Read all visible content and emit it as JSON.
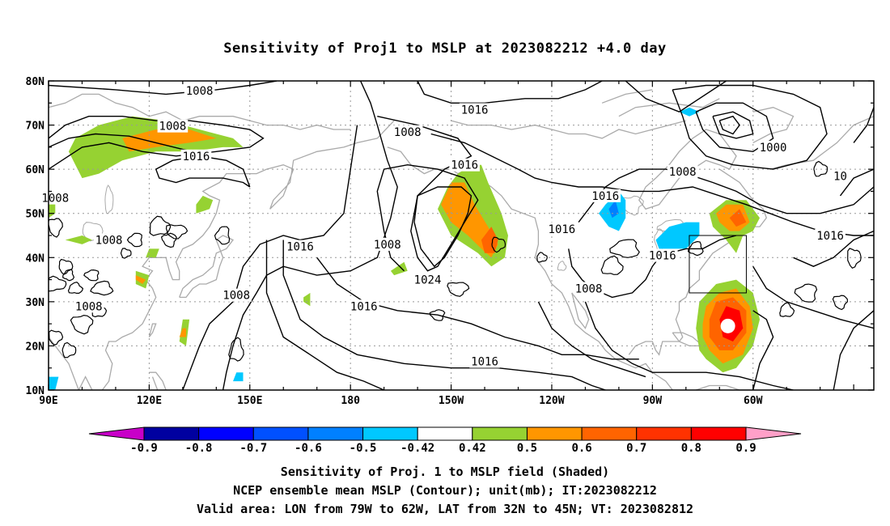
{
  "title": "Sensitivity of Proj1 to MSLP at 2023082212 +4.0 day",
  "map": {
    "lat_labels": [
      "80N",
      "70N",
      "60N",
      "50N",
      "40N",
      "30N",
      "20N",
      "10N"
    ],
    "lon_labels": [
      "90E",
      "120E",
      "150E",
      "180",
      "150W",
      "120W",
      "90W",
      "60W"
    ],
    "contour_labels": [
      {
        "text": "1008",
        "lon": 135,
        "lat": 77.8
      },
      {
        "text": "1008",
        "lon": 127,
        "lat": 69.8
      },
      {
        "text": "1016",
        "lon": 134,
        "lat": 63
      },
      {
        "text": "1008",
        "lon": 92,
        "lat": 53.5
      },
      {
        "text": "1008",
        "lon": 108,
        "lat": 44
      },
      {
        "text": "1008",
        "lon": 102,
        "lat": 29
      },
      {
        "text": "1008",
        "lon": 146,
        "lat": 31.5
      },
      {
        "text": "1016",
        "lon": 165,
        "lat": 42.5
      },
      {
        "text": "1016",
        "lon": 184,
        "lat": 29
      },
      {
        "text": "1008",
        "lon": 191,
        "lat": 43
      },
      {
        "text": "1024",
        "lon": 203,
        "lat": 35
      },
      {
        "text": "1008",
        "lon": 197,
        "lat": 68.5
      },
      {
        "text": "1016",
        "lon": 217,
        "lat": 73.5
      },
      {
        "text": "1016",
        "lon": 214,
        "lat": 61
      },
      {
        "text": "1016",
        "lon": 220,
        "lat": 16.5
      },
      {
        "text": "1016",
        "lon": 243,
        "lat": 46.5
      },
      {
        "text": "1008",
        "lon": 251,
        "lat": 33
      },
      {
        "text": "1016",
        "lon": 256,
        "lat": 54
      },
      {
        "text": "1016",
        "lon": 273,
        "lat": 40.5
      },
      {
        "text": "1008",
        "lon": 279,
        "lat": 59.5
      },
      {
        "text": "1000",
        "lon": 306,
        "lat": 65
      },
      {
        "text": "1016",
        "lon": 323,
        "lat": 45
      },
      {
        "text": "10",
        "lon": 326,
        "lat": 58.5
      }
    ],
    "valid_box": {
      "lon_min": 281,
      "lon_max": 298,
      "lat_min": 32,
      "lat_max": 45
    }
  },
  "colorbar": {
    "labels": [
      "-0.9",
      "-0.8",
      "-0.7",
      "-0.6",
      "-0.5",
      "-0.42",
      "0.42",
      "0.5",
      "0.6",
      "0.7",
      "0.8",
      "0.9"
    ],
    "colors": [
      "#c800c8",
      "#0000a0",
      "#0000ff",
      "#0050ff",
      "#0080ff",
      "#00c8ff",
      "#ffffff",
      "#96d232",
      "#ff9600",
      "#ff6400",
      "#ff3200",
      "#ff0000",
      "#ffa0c8"
    ]
  },
  "caption": {
    "line1": "Sensitivity of Proj. 1 to MSLP field (Shaded)",
    "line2": "NCEP ensemble mean MSLP (Contour); unit(mb); IT:2023082212",
    "line3": "Valid area: LON from 79W to 62W, LAT from 32N to 45N; VT: 2023082812"
  }
}
